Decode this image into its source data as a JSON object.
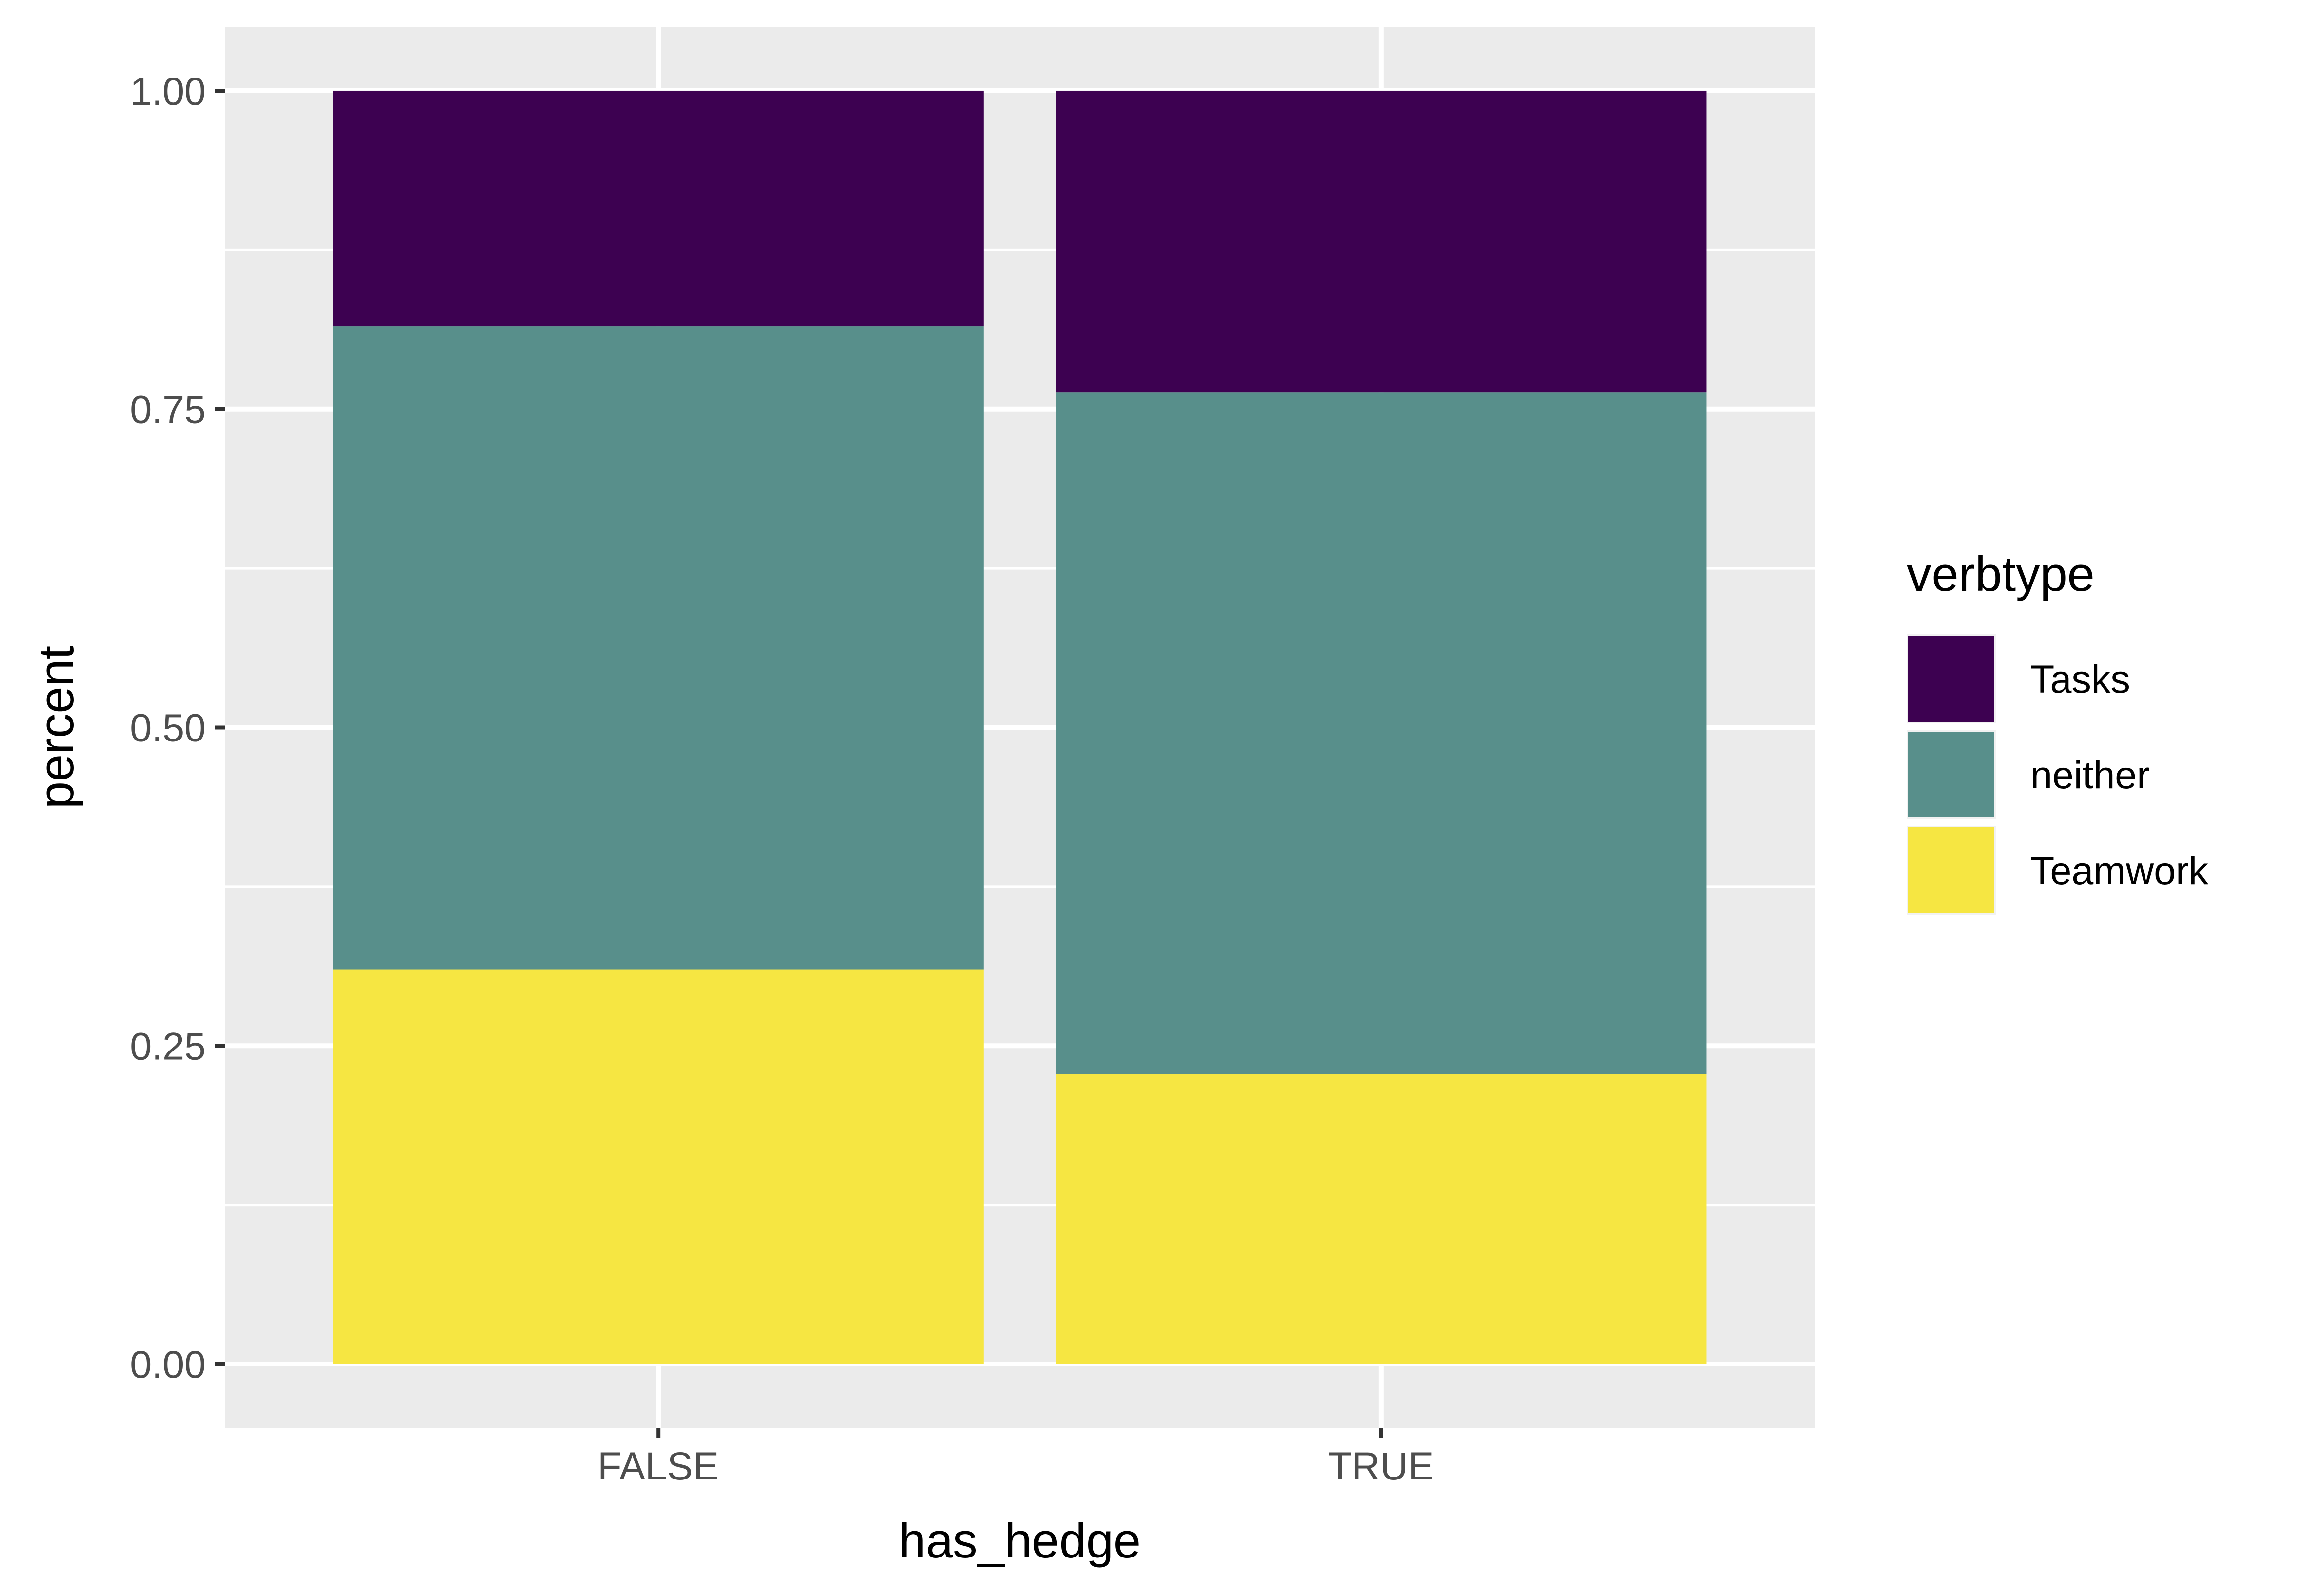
{
  "chart_data": {
    "type": "bar",
    "stacked": true,
    "xlabel": "has_hedge",
    "ylabel": "percent",
    "categories": [
      "FALSE",
      "TRUE"
    ],
    "ylim": [
      -0.05,
      1.05
    ],
    "yticks": [
      0,
      0.25,
      0.5,
      0.75,
      1
    ],
    "ytick_labels": [
      "0.00",
      "0.25",
      "0.50",
      "0.75",
      "1.00"
    ],
    "grid": true,
    "background": "#EBEBEB",
    "legend": {
      "title": "verbtype",
      "position": "right"
    },
    "series": [
      {
        "name": "Teamwork",
        "color": "#F6E642",
        "values": [
          0.31,
          0.228
        ]
      },
      {
        "name": "neither",
        "color": "#588F8B",
        "values": [
          0.505,
          0.535
        ]
      },
      {
        "name": "Tasks",
        "color": "#3D0151",
        "values": [
          0.185,
          0.237
        ]
      }
    ],
    "legend_order": [
      "Tasks",
      "neither",
      "Teamwork"
    ]
  }
}
